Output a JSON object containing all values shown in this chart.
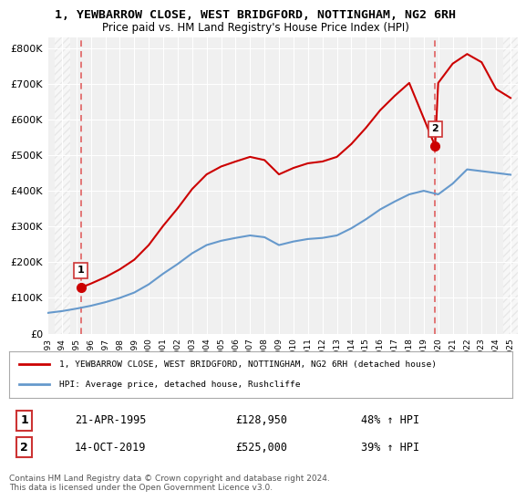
{
  "title_line1": "1, YEWBARROW CLOSE, WEST BRIDGFORD, NOTTINGHAM, NG2 6RH",
  "title_line2": "Price paid vs. HM Land Registry's House Price Index (HPI)",
  "ylabel_ticks": [
    "£0",
    "£100K",
    "£200K",
    "£300K",
    "£400K",
    "£500K",
    "£600K",
    "£700K",
    "£800K"
  ],
  "ytick_values": [
    0,
    100000,
    200000,
    300000,
    400000,
    500000,
    600000,
    700000,
    800000
  ],
  "ylim": [
    0,
    830000
  ],
  "xlim_start": 1993.5,
  "xlim_end": 2025.5,
  "xticks": [
    1993,
    1994,
    1995,
    1996,
    1997,
    1998,
    1999,
    2000,
    2001,
    2002,
    2003,
    2004,
    2005,
    2006,
    2007,
    2008,
    2009,
    2010,
    2011,
    2012,
    2013,
    2014,
    2015,
    2016,
    2017,
    2018,
    2019,
    2020,
    2021,
    2022,
    2023,
    2024,
    2025
  ],
  "background_color": "#ffffff",
  "plot_bg_color": "#f0f0f0",
  "grid_color": "#ffffff",
  "hatch_color": "#d8d8d8",
  "red_line_color": "#cc0000",
  "blue_line_color": "#6699cc",
  "vline_color": "#e06060",
  "marker_color": "#cc0000",
  "legend_label_red": "1, YEWBARROW CLOSE, WEST BRIDGFORD, NOTTINGHAM, NG2 6RH (detached house)",
  "legend_label_blue": "HPI: Average price, detached house, Rushcliffe",
  "transaction1_year": 1995.31,
  "transaction1_price": 128950,
  "transaction1_label": "1",
  "transaction2_year": 2019.79,
  "transaction2_price": 525000,
  "transaction2_label": "2",
  "table_row1": [
    "1",
    "21-APR-1995",
    "£128,950",
    "48% ↑ HPI"
  ],
  "table_row2": [
    "2",
    "14-OCT-2019",
    "£525,000",
    "39% ↑ HPI"
  ],
  "footnote": "Contains HM Land Registry data © Crown copyright and database right 2024.\nThis data is licensed under the Open Government Licence v3.0.",
  "hpi_years": [
    1993,
    1994,
    1995,
    1996,
    1997,
    1998,
    1999,
    2000,
    2001,
    2002,
    2003,
    2004,
    2005,
    2006,
    2007,
    2008,
    2009,
    2010,
    2011,
    2012,
    2013,
    2014,
    2015,
    2016,
    2017,
    2018,
    2019,
    2020,
    2021,
    2022,
    2023,
    2024,
    2025
  ],
  "hpi_values": [
    58000,
    63000,
    70000,
    78000,
    88000,
    100000,
    115000,
    138000,
    168000,
    195000,
    225000,
    248000,
    260000,
    268000,
    275000,
    270000,
    248000,
    258000,
    265000,
    268000,
    275000,
    295000,
    320000,
    348000,
    370000,
    390000,
    400000,
    390000,
    420000,
    460000,
    455000,
    450000,
    445000
  ],
  "red_years": [
    1995.31,
    1996,
    1997,
    1998,
    1999,
    2000,
    2001,
    2002,
    2003,
    2004,
    2005,
    2006,
    2007,
    2008,
    2009,
    2010,
    2011,
    2012,
    2013,
    2014,
    2015,
    2016,
    2017,
    2018,
    2019.79,
    2020,
    2021,
    2022,
    2023,
    2024,
    2025
  ],
  "red_values": [
    128950,
    140000,
    158000,
    180000,
    207000,
    248000,
    302000,
    351000,
    405000,
    446000,
    468000,
    482000,
    495000,
    486000,
    446000,
    464000,
    477000,
    482000,
    495000,
    531000,
    576000,
    626000,
    666000,
    702000,
    525000,
    702000,
    756000,
    783000,
    760000,
    685000,
    660000
  ]
}
